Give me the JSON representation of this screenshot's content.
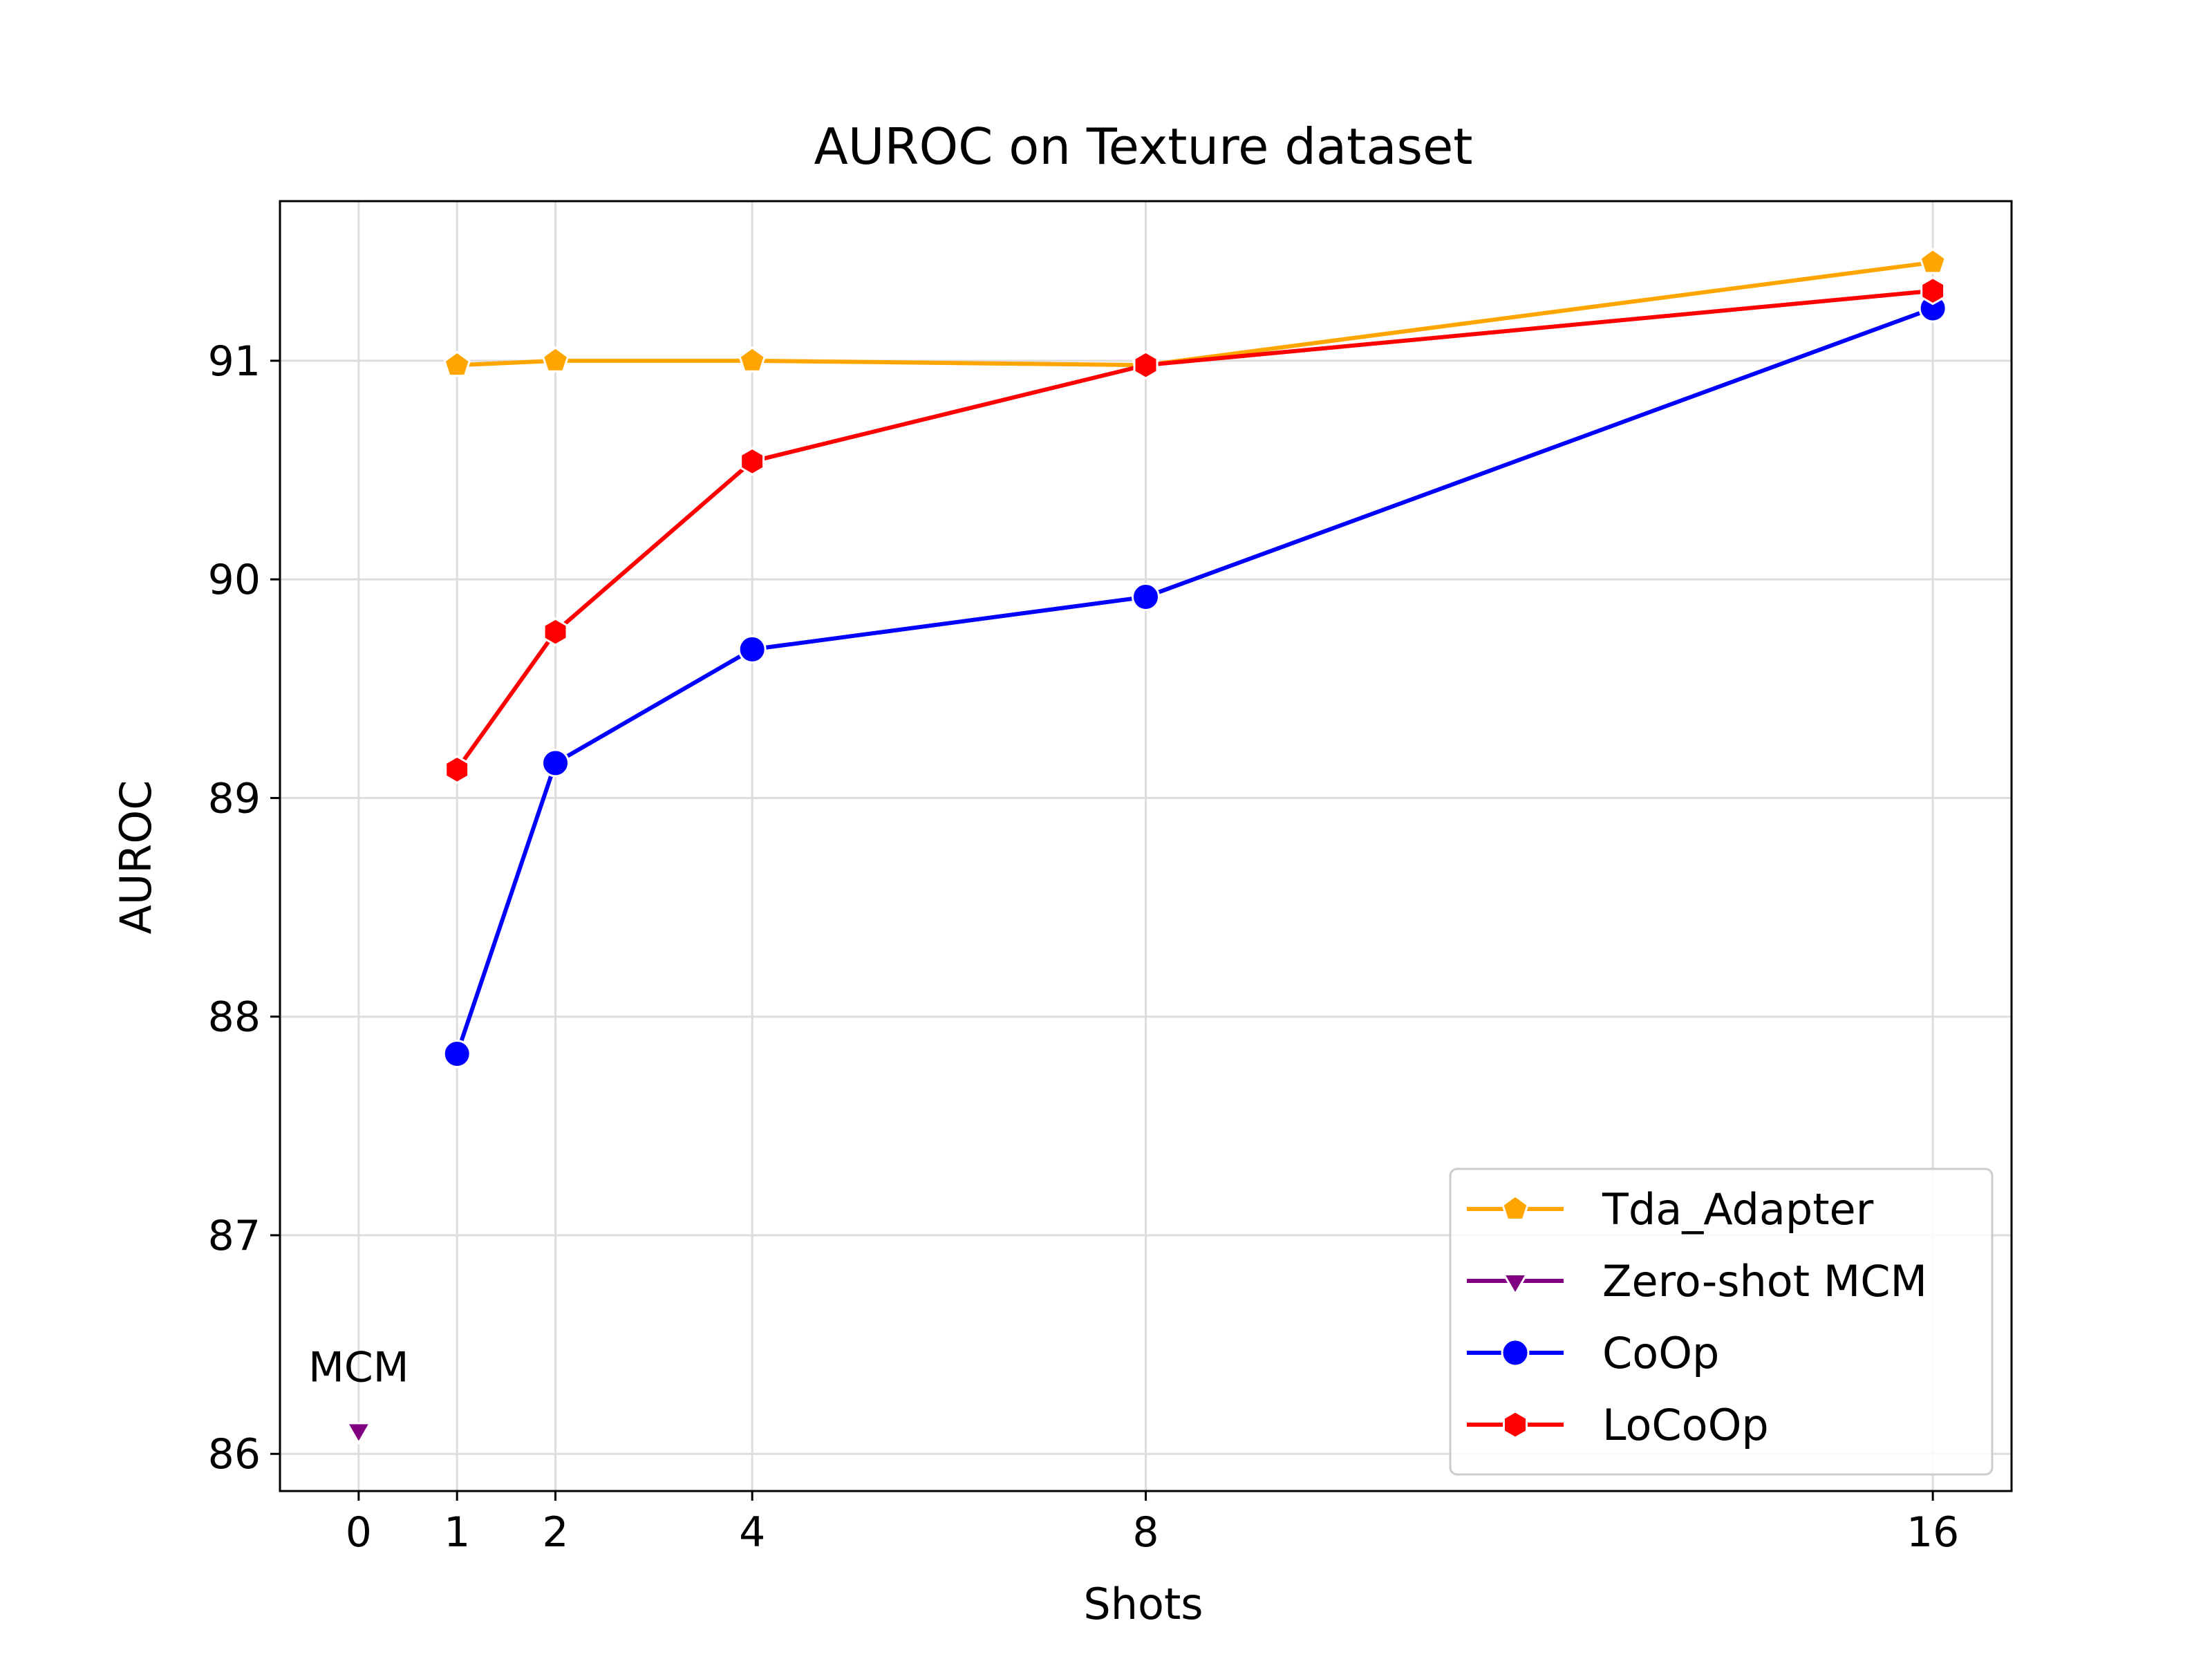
{
  "chart_data": {
    "type": "line",
    "title": "AUROC on Texture dataset",
    "xlabel": "Shots",
    "ylabel": "AUROC",
    "x_ticks": [
      0,
      1,
      2,
      4,
      8,
      16
    ],
    "y_ticks": [
      86,
      87,
      88,
      89,
      90,
      91
    ],
    "xlim": [
      -0.8,
      16.8
    ],
    "ylim": [
      85.83,
      91.73
    ],
    "grid": true,
    "legend_position": "lower-right",
    "series": [
      {
        "name": "Tda_Adapter",
        "color": "#FFA500",
        "marker": "pentagon",
        "x": [
          1,
          2,
          4,
          8,
          16
        ],
        "y": [
          90.98,
          91.0,
          91.0,
          90.98,
          91.45
        ]
      },
      {
        "name": "Zero-shot MCM",
        "color": "#800080",
        "marker": "triangle-down",
        "x": [
          0
        ],
        "y": [
          86.11
        ]
      },
      {
        "name": "CoOp",
        "color": "#0000FF",
        "marker": "circle",
        "x": [
          1,
          2,
          4,
          8,
          16
        ],
        "y": [
          87.83,
          89.16,
          89.68,
          89.92,
          91.24
        ]
      },
      {
        "name": "LoCoOp",
        "color": "#FF0000",
        "marker": "hexagon",
        "x": [
          1,
          2,
          4,
          8,
          16
        ],
        "y": [
          89.13,
          89.76,
          90.54,
          90.98,
          91.32
        ]
      }
    ],
    "annotations": [
      {
        "text": "MCM",
        "x": 0,
        "y": 86.11
      }
    ]
  }
}
